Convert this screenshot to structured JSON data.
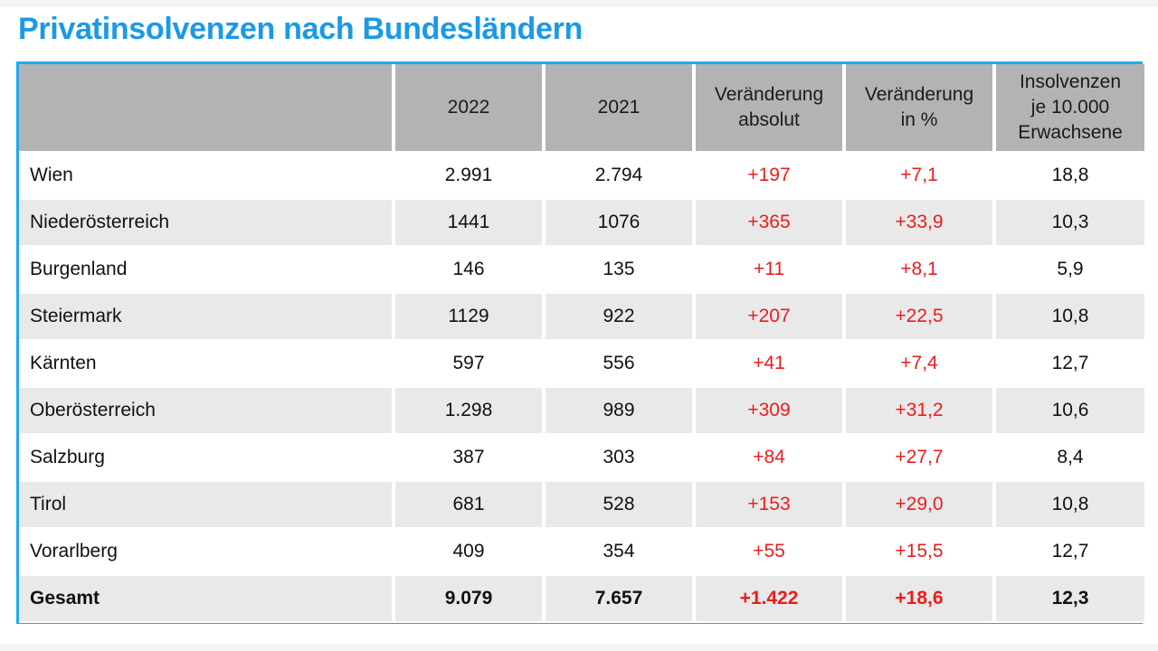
{
  "title": "Privatinsolvenzen nach Bundesländern",
  "colors": {
    "title": "#1a9ae6",
    "frame": "#1fa8ec",
    "header_bg": "#b3b3b3",
    "stripe_bg": "#e9e9e9",
    "positive_change": "#ee1c1c"
  },
  "table": {
    "headers": [
      {
        "lines": [
          ""
        ]
      },
      {
        "lines": [
          "2022"
        ]
      },
      {
        "lines": [
          "2021"
        ]
      },
      {
        "lines": [
          "Veränderung",
          "absolut"
        ]
      },
      {
        "lines": [
          "Veränderung",
          "in %"
        ]
      },
      {
        "lines": [
          "Insolvenzen",
          "je 10.000",
          "Erwachsene"
        ]
      }
    ],
    "rows": [
      {
        "region": "Wien",
        "y2022": "2.991",
        "y2021": "2.794",
        "abs": "+197",
        "pct": "+7,1",
        "per10k": "18,8"
      },
      {
        "region": "Niederösterreich",
        "y2022": "1441",
        "y2021": "1076",
        "abs": "+365",
        "pct": "+33,9",
        "per10k": "10,3"
      },
      {
        "region": "Burgenland",
        "y2022": "146",
        "y2021": "135",
        "abs": "+11",
        "pct": "+8,1",
        "per10k": "5,9"
      },
      {
        "region": "Steiermark",
        "y2022": "1129",
        "y2021": "922",
        "abs": "+207",
        "pct": "+22,5",
        "per10k": "10,8"
      },
      {
        "region": "Kärnten",
        "y2022": "597",
        "y2021": "556",
        "abs": "+41",
        "pct": "+7,4",
        "per10k": "12,7"
      },
      {
        "region": "Oberösterreich",
        "y2022": "1.298",
        "y2021": "989",
        "abs": "+309",
        "pct": "+31,2",
        "per10k": "10,6"
      },
      {
        "region": "Salzburg",
        "y2022": "387",
        "y2021": "303",
        "abs": "+84",
        "pct": "+27,7",
        "per10k": "8,4"
      },
      {
        "region": "Tirol",
        "y2022": "681",
        "y2021": "528",
        "abs": "+153",
        "pct": "+29,0",
        "per10k": "10,8"
      },
      {
        "region": "Vorarlberg",
        "y2022": "409",
        "y2021": "354",
        "abs": "+55",
        "pct": "+15,5",
        "per10k": "12,7"
      },
      {
        "region": "Gesamt",
        "y2022": "9.079",
        "y2021": "7.657",
        "abs": "+1.422",
        "pct": "+18,6",
        "per10k": "12,3"
      }
    ]
  }
}
